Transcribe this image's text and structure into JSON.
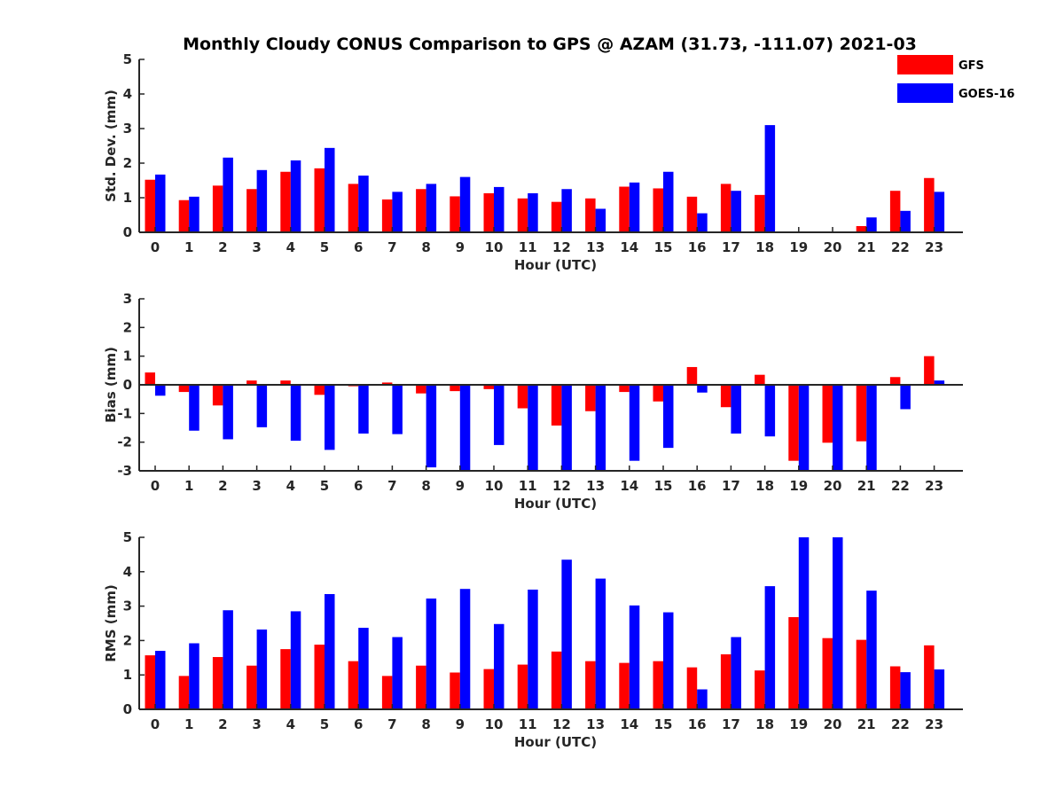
{
  "title": "Monthly Cloudy CONUS Comparison to GPS @ AZAM (31.73, -111.07) 2021-03",
  "colors": {
    "gfs": "#ff0000",
    "goes": "#0000ff",
    "axis": "#262626"
  },
  "legend": {
    "position": "top-right",
    "entries": [
      "GFS",
      "GOES-16"
    ]
  },
  "chart_data": [
    {
      "type": "bar",
      "categories": [
        "0",
        "1",
        "2",
        "3",
        "4",
        "5",
        "6",
        "7",
        "8",
        "9",
        "10",
        "11",
        "12",
        "13",
        "14",
        "15",
        "16",
        "17",
        "18",
        "19",
        "20",
        "21",
        "22",
        "23"
      ],
      "xlabel": "Hour (UTC)",
      "ylabel": "Std. Dev. (mm)",
      "ylim": [
        0,
        5
      ],
      "yticks": [
        "0",
        "1",
        "2",
        "3",
        "4",
        "5"
      ],
      "series": [
        {
          "name": "GFS",
          "values": [
            1.52,
            0.93,
            1.35,
            1.25,
            1.75,
            1.85,
            1.4,
            0.95,
            1.25,
            1.04,
            1.13,
            0.98,
            0.88,
            0.98,
            1.32,
            1.27,
            1.03,
            1.4,
            1.08,
            0,
            0,
            0.18,
            1.2,
            1.57
          ]
        },
        {
          "name": "GOES-16",
          "values": [
            1.67,
            1.03,
            2.16,
            1.8,
            2.08,
            2.44,
            1.64,
            1.17,
            1.4,
            1.6,
            1.31,
            1.13,
            1.25,
            0.68,
            1.44,
            1.75,
            0.55,
            1.2,
            3.1,
            0,
            0,
            0.43,
            0.62,
            1.17
          ]
        }
      ]
    },
    {
      "type": "bar",
      "categories": [
        "0",
        "1",
        "2",
        "3",
        "4",
        "5",
        "6",
        "7",
        "8",
        "9",
        "10",
        "11",
        "12",
        "13",
        "14",
        "15",
        "16",
        "17",
        "18",
        "19",
        "20",
        "21",
        "22",
        "23"
      ],
      "xlabel": "Hour (UTC)",
      "ylabel": "Bias (mm)",
      "ylim": [
        -3,
        3
      ],
      "yticks": [
        "-3",
        "-2",
        "-1",
        "0",
        "1",
        "2",
        "3"
      ],
      "series": [
        {
          "name": "GFS",
          "values": [
            0.43,
            -0.25,
            -0.72,
            0.15,
            0.15,
            -0.35,
            -0.05,
            0.08,
            -0.3,
            -0.22,
            -0.15,
            -0.82,
            -1.42,
            -0.92,
            -0.25,
            -0.58,
            0.62,
            -0.78,
            0.35,
            -2.65,
            -2.02,
            -1.97,
            0.27,
            1.0
          ]
        },
        {
          "name": "GOES-16",
          "values": [
            -0.38,
            -1.6,
            -1.9,
            -1.48,
            -1.95,
            -2.27,
            -1.7,
            -1.72,
            -2.88,
            -3.0,
            -2.1,
            -3.0,
            -3.0,
            -3.0,
            -2.65,
            -2.2,
            -0.27,
            -1.7,
            -1.8,
            -3.0,
            -3.0,
            -3.0,
            -0.85,
            0.15
          ]
        }
      ]
    },
    {
      "type": "bar",
      "categories": [
        "0",
        "1",
        "2",
        "3",
        "4",
        "5",
        "6",
        "7",
        "8",
        "9",
        "10",
        "11",
        "12",
        "13",
        "14",
        "15",
        "16",
        "17",
        "18",
        "19",
        "20",
        "21",
        "22",
        "23"
      ],
      "xlabel": "Hour (UTC)",
      "ylabel": "RMS (mm)",
      "ylim": [
        0,
        5
      ],
      "yticks": [
        "0",
        "1",
        "2",
        "3",
        "4",
        "5"
      ],
      "series": [
        {
          "name": "GFS",
          "values": [
            1.57,
            0.97,
            1.52,
            1.27,
            1.75,
            1.88,
            1.4,
            0.97,
            1.27,
            1.07,
            1.17,
            1.3,
            1.68,
            1.4,
            1.35,
            1.4,
            1.22,
            1.6,
            1.13,
            2.68,
            2.07,
            2.02,
            1.25,
            1.86
          ]
        },
        {
          "name": "GOES-16",
          "values": [
            1.7,
            1.92,
            2.88,
            2.32,
            2.85,
            3.35,
            2.37,
            2.1,
            3.22,
            3.5,
            2.48,
            3.48,
            4.35,
            3.8,
            3.02,
            2.82,
            0.58,
            2.1,
            3.58,
            5.0,
            5.0,
            3.45,
            1.08,
            1.16
          ]
        }
      ]
    }
  ]
}
